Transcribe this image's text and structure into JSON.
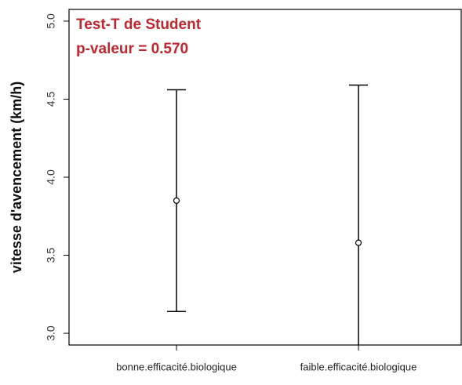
{
  "chart_data": {
    "type": "errorbar",
    "ylabel": "vitesse d'avencement (km/h)",
    "annotations": [
      "Test-T de Student",
      "p-valeur = 0.570"
    ],
    "annotation_color": "#c0262d",
    "categories": [
      "bonne.efficacité.biologique",
      "faible.efficacité.biologique"
    ],
    "values": [
      3.85,
      3.58
    ],
    "errors": [
      0.71,
      1.01
    ],
    "color": "#000000",
    "ylim": [
      2.925,
      5.075
    ],
    "yticks": [
      {
        "value": 3,
        "label": "3.0"
      },
      {
        "value": 3.5,
        "label": "3.5"
      },
      {
        "value": 4,
        "label": "4.0"
      },
      {
        "value": 4.5,
        "label": "4.5"
      },
      {
        "value": 5,
        "label": "5.0"
      }
    ]
  }
}
